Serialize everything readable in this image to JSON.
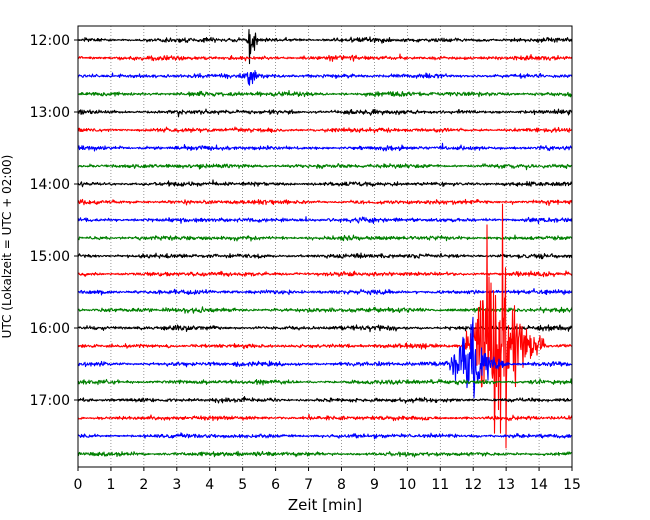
{
  "chart_data": {
    "type": "line",
    "title": "",
    "xlabel": "Zeit  [min]",
    "ylabel": "UTC (Lokalzeit = UTC + 02:00)",
    "xlim": [
      0,
      15
    ],
    "x_ticks": [
      "0",
      "1",
      "2",
      "3",
      "4",
      "5",
      "6",
      "7",
      "8",
      "9",
      "10",
      "11",
      "12",
      "13",
      "14",
      "15"
    ],
    "y_ticks": [
      "12:00",
      "13:00",
      "14:00",
      "15:00",
      "16:00",
      "17:00"
    ],
    "trace_start": "12:00",
    "trace_interval_min": 15,
    "trace_count": 24,
    "grid": "x",
    "series_colors": [
      "#000000",
      "#ff0000",
      "#0000ff",
      "#008000"
    ],
    "events": [
      {
        "trace_start": "12:00",
        "start_min": 5.1,
        "end_min": 5.5,
        "peak_min": 5.25,
        "amplitude": 0.8
      },
      {
        "trace_start": "12:30",
        "start_min": 5.1,
        "end_min": 5.5,
        "peak_min": 5.3,
        "amplitude": 0.7
      },
      {
        "trace_start": "16:15",
        "start_min": 11.7,
        "end_min": 14.2,
        "peak_min": 12.8,
        "amplitude": 4.5
      },
      {
        "trace_start": "16:30",
        "start_min": 11.1,
        "end_min": 13.1,
        "peak_min": 12.0,
        "amplitude": 1.3
      }
    ]
  }
}
